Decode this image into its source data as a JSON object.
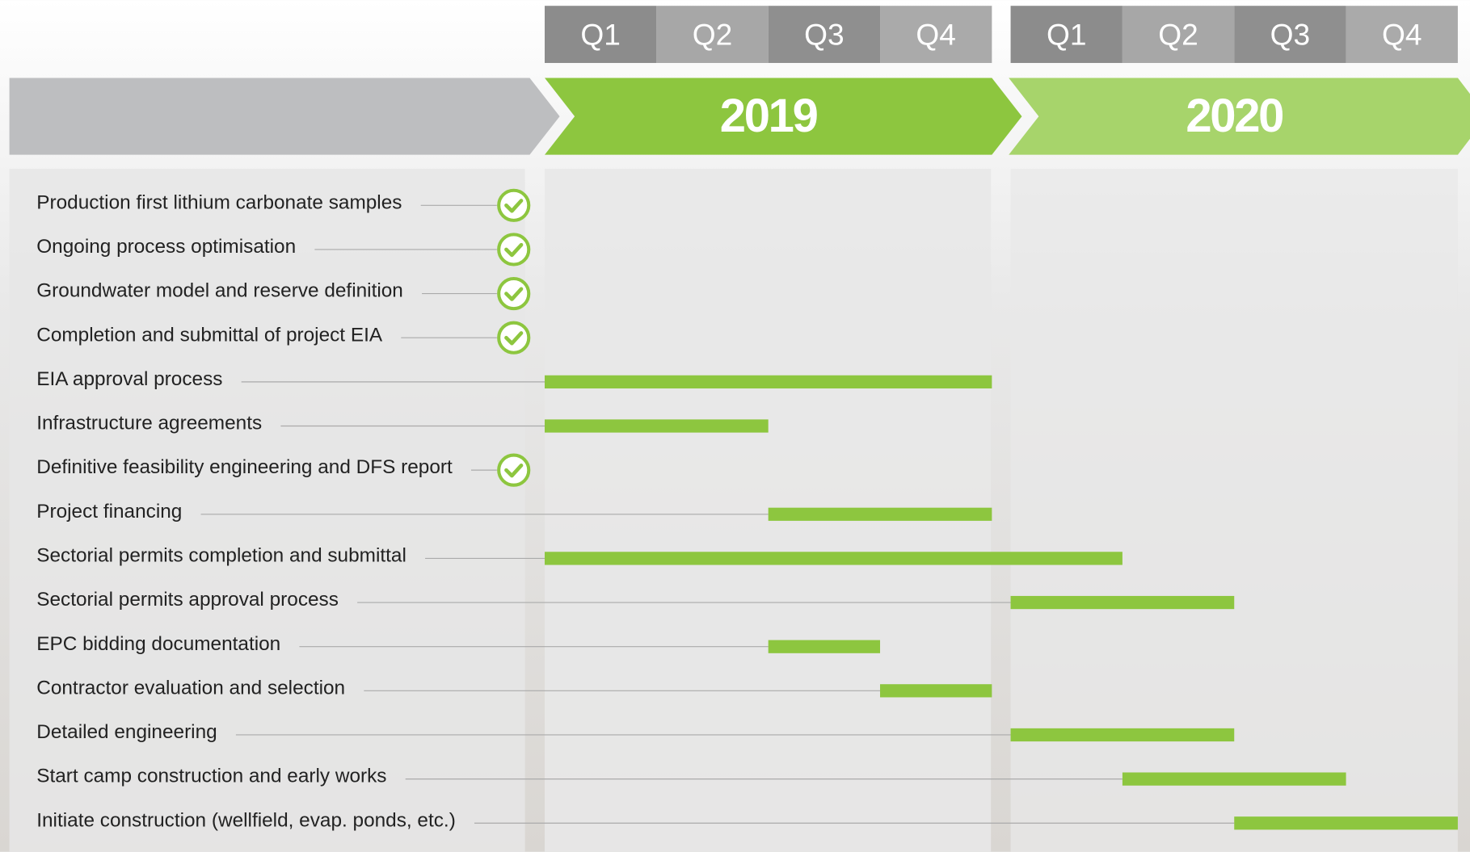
{
  "quarters": [
    "Q1",
    "Q2",
    "Q3",
    "Q4"
  ],
  "years": [
    "2019",
    "2020"
  ],
  "tasks": [
    {
      "label": "Production first lithium carbonate samples",
      "completed": true
    },
    {
      "label": "Ongoing process optimisation",
      "completed": true
    },
    {
      "label": "Groundwater model and reserve definition",
      "completed": true
    },
    {
      "label": "Completion and submittal of project EIA",
      "completed": true
    },
    {
      "label": "EIA approval process",
      "start": 0,
      "end": 4
    },
    {
      "label": "Infrastructure agreements",
      "start": 0,
      "end": 2
    },
    {
      "label": "Definitive feasibility engineering and DFS report",
      "completed": true
    },
    {
      "label": "Project financing",
      "start": 2,
      "end": 4
    },
    {
      "label": "Sectorial permits completion and submittal",
      "start": 0,
      "end": 5
    },
    {
      "label": "Sectorial permits approval process",
      "start": 4,
      "end": 6
    },
    {
      "label": "EPC bidding documentation",
      "start": 2,
      "end": 3
    },
    {
      "label": "Contractor evaluation and selection",
      "start": 3,
      "end": 4
    },
    {
      "label": "Detailed engineering",
      "start": 4,
      "end": 6
    },
    {
      "label": "Start camp construction and early works",
      "start": 5,
      "end": 7
    },
    {
      "label": "Initiate construction (wellfield, evap. ponds, etc.)",
      "start": 6,
      "end": 8
    }
  ]
}
